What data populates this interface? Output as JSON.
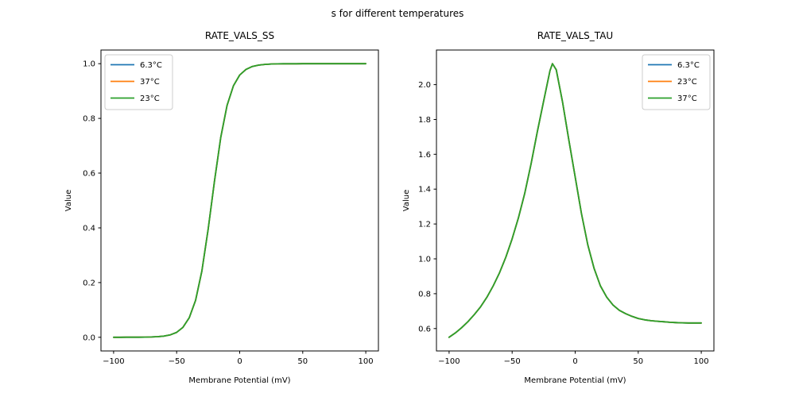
{
  "figure": {
    "suptitle": "s for different temperatures",
    "background": "#ffffff"
  },
  "palette": {
    "blue": "#1f77b4",
    "orange": "#ff7f0e",
    "green": "#2ca02c",
    "legend_edge": "#cccccc",
    "axes": "#000000"
  },
  "chart_data": [
    {
      "type": "line",
      "title": "RATE_VALS_SS",
      "xlabel": "Membrane Potential (mV)",
      "ylabel": "Value",
      "xlim": [
        -110,
        110
      ],
      "ylim": [
        -0.05,
        1.05
      ],
      "grid": false,
      "xticks": {
        "values": [
          -100,
          -50,
          0,
          50,
          100
        ],
        "labels": [
          "−100",
          "−50",
          "0",
          "50",
          "100"
        ]
      },
      "yticks": {
        "values": [
          0.0,
          0.2,
          0.4,
          0.6,
          0.8,
          1.0
        ],
        "labels": [
          "0.0",
          "0.2",
          "0.4",
          "0.6",
          "0.8",
          "1.0"
        ]
      },
      "legend": {
        "location": "upper left",
        "items": [
          {
            "label": "6.3°C",
            "color": "#1f77b4"
          },
          {
            "label": "37°C",
            "color": "#ff7f0e"
          },
          {
            "label": "23°C",
            "color": "#2ca02c"
          }
        ]
      },
      "all_series_overlap": true,
      "x": [
        -100,
        -95,
        -90,
        -85,
        -80,
        -75,
        -70,
        -65,
        -60,
        -55,
        -50,
        -45,
        -40,
        -35,
        -30,
        -25,
        -20,
        -15,
        -10,
        -5,
        0,
        5,
        10,
        15,
        20,
        25,
        30,
        35,
        40,
        45,
        50,
        55,
        60,
        65,
        70,
        75,
        80,
        85,
        90,
        95,
        100
      ],
      "y_shared": [
        0.0,
        0.0,
        0.0001,
        0.0001,
        0.0003,
        0.0005,
        0.0011,
        0.0021,
        0.0044,
        0.0089,
        0.018,
        0.0361,
        0.071,
        0.135,
        0.2418,
        0.3944,
        0.571,
        0.7311,
        0.8474,
        0.919,
        0.9586,
        0.9793,
        0.9898,
        0.995,
        0.9975,
        0.9988,
        0.9994,
        0.9997,
        0.9999,
        0.9999,
        1.0,
        1.0,
        1.0,
        1.0,
        1.0,
        1.0,
        1.0,
        1.0,
        1.0,
        1.0,
        1.0
      ],
      "series": [
        {
          "name": "6.3°C",
          "color": "#1f77b4"
        },
        {
          "name": "37°C",
          "color": "#ff7f0e"
        },
        {
          "name": "23°C",
          "color": "#2ca02c"
        }
      ]
    },
    {
      "type": "line",
      "title": "RATE_VALS_TAU",
      "xlabel": "Membrane Potential (mV)",
      "ylabel": "Value",
      "xlim": [
        -110,
        110
      ],
      "ylim": [
        0.4715,
        2.1985
      ],
      "grid": false,
      "xticks": {
        "values": [
          -100,
          -50,
          0,
          50,
          100
        ],
        "labels": [
          "−100",
          "−50",
          "0",
          "50",
          "100"
        ]
      },
      "yticks": {
        "values": [
          0.6,
          0.8,
          1.0,
          1.2,
          1.4,
          1.6,
          1.8,
          2.0
        ],
        "labels": [
          "0.6",
          "0.8",
          "1.0",
          "1.2",
          "1.4",
          "1.6",
          "1.8",
          "2.0"
        ]
      },
      "legend": {
        "location": "upper right",
        "items": [
          {
            "label": "6.3°C",
            "color": "#1f77b4"
          },
          {
            "label": "23°C",
            "color": "#ff7f0e"
          },
          {
            "label": "37°C",
            "color": "#2ca02c"
          }
        ]
      },
      "all_series_overlap": true,
      "x": [
        -100,
        -95,
        -90,
        -85,
        -80,
        -75,
        -70,
        -65,
        -60,
        -55,
        -50,
        -45,
        -40,
        -35,
        -30,
        -25,
        -20,
        -18,
        -15,
        -10,
        -5,
        0,
        5,
        10,
        15,
        20,
        25,
        30,
        35,
        40,
        45,
        50,
        55,
        60,
        65,
        70,
        75,
        80,
        85,
        90,
        95,
        100
      ],
      "y_shared": [
        0.55,
        0.575,
        0.605,
        0.64,
        0.68,
        0.725,
        0.78,
        0.845,
        0.92,
        1.01,
        1.115,
        1.235,
        1.375,
        1.545,
        1.73,
        1.905,
        2.08,
        2.12,
        2.085,
        1.9,
        1.68,
        1.47,
        1.26,
        1.08,
        0.945,
        0.845,
        0.78,
        0.735,
        0.705,
        0.685,
        0.67,
        0.658,
        0.65,
        0.645,
        0.642,
        0.639,
        0.636,
        0.634,
        0.633,
        0.632,
        0.632,
        0.632
      ],
      "series": [
        {
          "name": "6.3°C",
          "color": "#1f77b4"
        },
        {
          "name": "23°C",
          "color": "#ff7f0e"
        },
        {
          "name": "37°C",
          "color": "#2ca02c"
        }
      ]
    }
  ]
}
